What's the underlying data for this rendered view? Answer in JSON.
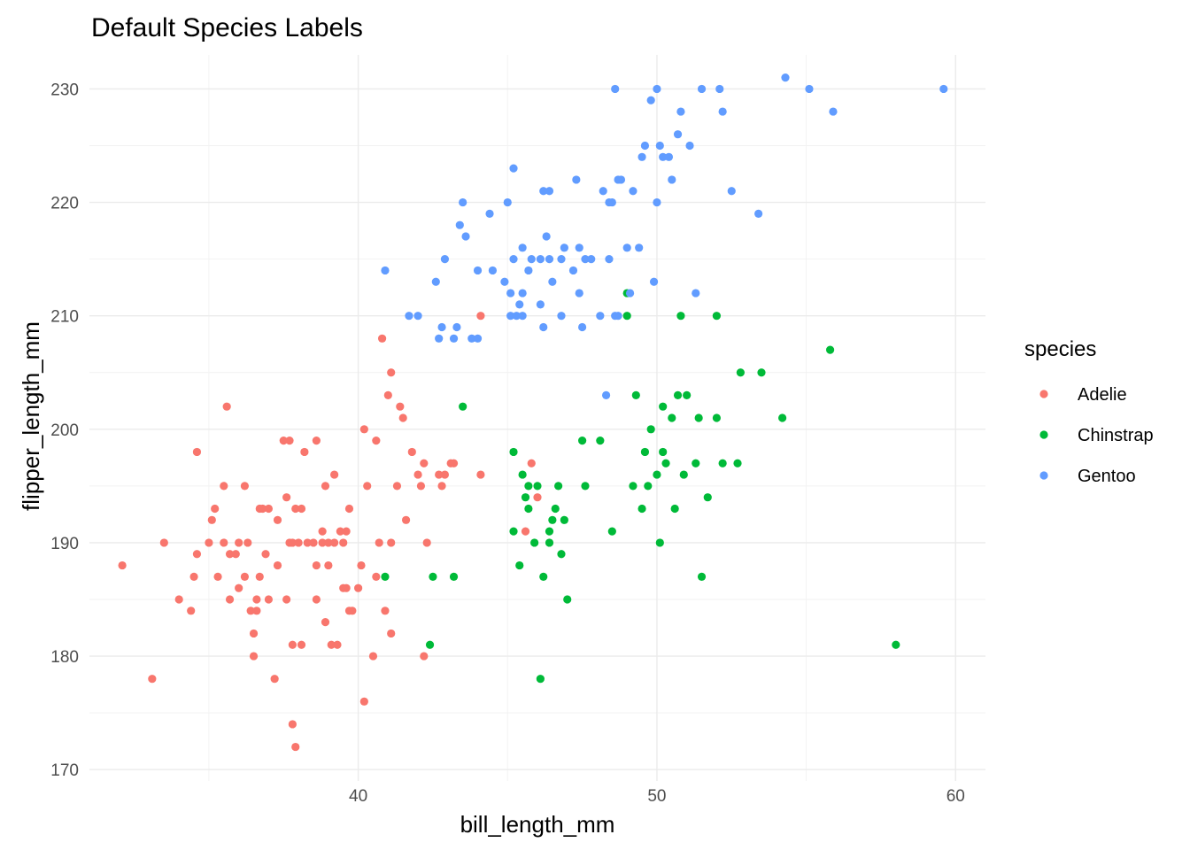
{
  "chart_data": {
    "type": "scatter",
    "title": "Default Species Labels",
    "xlabel": "bill_length_mm",
    "ylabel": "flipper_length_mm",
    "xlim": [
      31.0,
      61.0
    ],
    "ylim": [
      169.0,
      233.0
    ],
    "x_ticks": [
      40,
      50,
      60
    ],
    "y_ticks": [
      170,
      180,
      190,
      200,
      210,
      220,
      230
    ],
    "grid": true,
    "legend_title": "species",
    "legend_position": "right",
    "series": [
      {
        "name": "Adelie",
        "color": "#F8766D",
        "points": [
          [
            32.1,
            188
          ],
          [
            33.1,
            178
          ],
          [
            33.5,
            190
          ],
          [
            34.0,
            185
          ],
          [
            34.4,
            184
          ],
          [
            34.5,
            187
          ],
          [
            34.6,
            189
          ],
          [
            34.6,
            198
          ],
          [
            35.0,
            190
          ],
          [
            35.1,
            192
          ],
          [
            35.2,
            193
          ],
          [
            35.3,
            187
          ],
          [
            35.5,
            190
          ],
          [
            35.5,
            195
          ],
          [
            35.6,
            202
          ],
          [
            35.7,
            185
          ],
          [
            35.7,
            189
          ],
          [
            35.9,
            189
          ],
          [
            36.0,
            190
          ],
          [
            36.0,
            186
          ],
          [
            36.2,
            187
          ],
          [
            36.2,
            195
          ],
          [
            36.3,
            190
          ],
          [
            36.4,
            184
          ],
          [
            36.5,
            182
          ],
          [
            36.5,
            180
          ],
          [
            36.6,
            185
          ],
          [
            36.6,
            184
          ],
          [
            36.7,
            187
          ],
          [
            36.7,
            193
          ],
          [
            36.8,
            193
          ],
          [
            36.9,
            189
          ],
          [
            37.0,
            185
          ],
          [
            37.0,
            193
          ],
          [
            37.2,
            178
          ],
          [
            37.3,
            192
          ],
          [
            37.3,
            188
          ],
          [
            37.5,
            199
          ],
          [
            37.6,
            185
          ],
          [
            37.6,
            194
          ],
          [
            37.7,
            199
          ],
          [
            37.7,
            190
          ],
          [
            37.8,
            181
          ],
          [
            37.8,
            190
          ],
          [
            37.8,
            174
          ],
          [
            37.9,
            172
          ],
          [
            37.9,
            193
          ],
          [
            38.0,
            190
          ],
          [
            38.1,
            181
          ],
          [
            38.1,
            193
          ],
          [
            38.2,
            198
          ],
          [
            38.3,
            190
          ],
          [
            38.5,
            190
          ],
          [
            38.6,
            185
          ],
          [
            38.6,
            188
          ],
          [
            38.6,
            199
          ],
          [
            38.8,
            190
          ],
          [
            38.8,
            191
          ],
          [
            38.9,
            183
          ],
          [
            38.9,
            195
          ],
          [
            39.0,
            188
          ],
          [
            39.0,
            190
          ],
          [
            39.1,
            181
          ],
          [
            39.2,
            196
          ],
          [
            39.2,
            190
          ],
          [
            39.3,
            181
          ],
          [
            39.4,
            191
          ],
          [
            39.5,
            190
          ],
          [
            39.5,
            186
          ],
          [
            39.6,
            191
          ],
          [
            39.6,
            186
          ],
          [
            39.7,
            193
          ],
          [
            39.7,
            184
          ],
          [
            39.8,
            184
          ],
          [
            40.0,
            186
          ],
          [
            40.1,
            188
          ],
          [
            40.2,
            176
          ],
          [
            40.2,
            200
          ],
          [
            40.3,
            195
          ],
          [
            40.5,
            180
          ],
          [
            40.6,
            187
          ],
          [
            40.6,
            199
          ],
          [
            40.7,
            190
          ],
          [
            40.8,
            208
          ],
          [
            40.9,
            184
          ],
          [
            41.0,
            203
          ],
          [
            41.1,
            190
          ],
          [
            41.1,
            182
          ],
          [
            41.1,
            205
          ],
          [
            41.3,
            195
          ],
          [
            41.4,
            202
          ],
          [
            41.5,
            201
          ],
          [
            41.6,
            192
          ],
          [
            41.8,
            198
          ],
          [
            42.0,
            196
          ],
          [
            42.1,
            195
          ],
          [
            42.2,
            197
          ],
          [
            42.2,
            180
          ],
          [
            42.3,
            190
          ],
          [
            42.7,
            196
          ],
          [
            42.8,
            195
          ],
          [
            42.9,
            196
          ],
          [
            43.1,
            197
          ],
          [
            43.2,
            197
          ],
          [
            44.1,
            196
          ],
          [
            44.1,
            210
          ],
          [
            45.6,
            191
          ],
          [
            45.8,
            197
          ],
          [
            46.0,
            194
          ]
        ]
      },
      {
        "name": "Chinstrap",
        "color": "#00BA38",
        "points": [
          [
            40.9,
            187
          ],
          [
            42.4,
            181
          ],
          [
            42.5,
            187
          ],
          [
            43.2,
            187
          ],
          [
            43.5,
            202
          ],
          [
            45.2,
            198
          ],
          [
            45.2,
            191
          ],
          [
            45.4,
            188
          ],
          [
            45.5,
            196
          ],
          [
            45.6,
            194
          ],
          [
            45.7,
            195
          ],
          [
            45.7,
            193
          ],
          [
            45.9,
            190
          ],
          [
            46.0,
            195
          ],
          [
            46.1,
            178
          ],
          [
            46.2,
            187
          ],
          [
            46.4,
            191
          ],
          [
            46.4,
            190
          ],
          [
            46.5,
            192
          ],
          [
            46.6,
            193
          ],
          [
            46.7,
            195
          ],
          [
            46.8,
            189
          ],
          [
            46.9,
            192
          ],
          [
            47.0,
            185
          ],
          [
            47.5,
            199
          ],
          [
            47.6,
            195
          ],
          [
            48.1,
            199
          ],
          [
            48.5,
            191
          ],
          [
            49.0,
            210
          ],
          [
            49.0,
            212
          ],
          [
            49.2,
            195
          ],
          [
            49.3,
            203
          ],
          [
            49.5,
            193
          ],
          [
            49.6,
            198
          ],
          [
            49.7,
            195
          ],
          [
            49.8,
            200
          ],
          [
            50.0,
            196
          ],
          [
            50.1,
            190
          ],
          [
            50.2,
            198
          ],
          [
            50.2,
            202
          ],
          [
            50.3,
            197
          ],
          [
            50.5,
            201
          ],
          [
            50.6,
            193
          ],
          [
            50.7,
            203
          ],
          [
            50.8,
            210
          ],
          [
            50.9,
            196
          ],
          [
            51.0,
            203
          ],
          [
            51.3,
            197
          ],
          [
            51.4,
            201
          ],
          [
            51.5,
            187
          ],
          [
            51.7,
            194
          ],
          [
            52.0,
            201
          ],
          [
            52.0,
            210
          ],
          [
            52.2,
            197
          ],
          [
            52.7,
            197
          ],
          [
            52.8,
            205
          ],
          [
            53.5,
            205
          ],
          [
            54.2,
            201
          ],
          [
            55.8,
            207
          ],
          [
            58.0,
            181
          ]
        ]
      },
      {
        "name": "Gentoo",
        "color": "#619CFF",
        "points": [
          [
            40.9,
            214
          ],
          [
            41.7,
            210
          ],
          [
            42.0,
            210
          ],
          [
            42.6,
            213
          ],
          [
            42.7,
            208
          ],
          [
            42.8,
            209
          ],
          [
            42.9,
            215
          ],
          [
            43.2,
            208
          ],
          [
            43.3,
            209
          ],
          [
            43.4,
            218
          ],
          [
            43.5,
            220
          ],
          [
            43.6,
            217
          ],
          [
            43.8,
            208
          ],
          [
            44.0,
            208
          ],
          [
            44.4,
            219
          ],
          [
            44.5,
            214
          ],
          [
            44.9,
            213
          ],
          [
            45.0,
            220
          ],
          [
            45.1,
            210
          ],
          [
            45.1,
            212
          ],
          [
            45.2,
            215
          ],
          [
            45.2,
            223
          ],
          [
            45.3,
            210
          ],
          [
            45.4,
            211
          ],
          [
            45.5,
            210
          ],
          [
            45.5,
            212
          ],
          [
            45.5,
            216
          ],
          [
            45.7,
            214
          ],
          [
            45.8,
            215
          ],
          [
            46.1,
            215
          ],
          [
            46.2,
            209
          ],
          [
            46.2,
            221
          ],
          [
            46.3,
            217
          ],
          [
            46.4,
            215
          ],
          [
            46.4,
            221
          ],
          [
            46.5,
            213
          ],
          [
            46.8,
            210
          ],
          [
            46.8,
            215
          ],
          [
            46.9,
            216
          ],
          [
            47.2,
            214
          ],
          [
            47.3,
            222
          ],
          [
            47.4,
            212
          ],
          [
            47.5,
            209
          ],
          [
            47.6,
            215
          ],
          [
            47.8,
            215
          ],
          [
            48.1,
            210
          ],
          [
            48.2,
            221
          ],
          [
            48.4,
            215
          ],
          [
            48.4,
            220
          ],
          [
            48.5,
            220
          ],
          [
            48.6,
            230
          ],
          [
            48.7,
            210
          ],
          [
            48.7,
            222
          ],
          [
            48.8,
            222
          ],
          [
            49.0,
            216
          ],
          [
            49.1,
            212
          ],
          [
            49.2,
            221
          ],
          [
            49.4,
            216
          ],
          [
            49.5,
            224
          ],
          [
            49.6,
            225
          ],
          [
            49.8,
            229
          ],
          [
            49.9,
            213
          ],
          [
            50.0,
            220
          ],
          [
            50.0,
            230
          ],
          [
            50.1,
            225
          ],
          [
            50.2,
            224
          ],
          [
            50.4,
            224
          ],
          [
            50.5,
            222
          ],
          [
            50.7,
            226
          ],
          [
            50.8,
            228
          ],
          [
            51.1,
            225
          ],
          [
            51.3,
            212
          ],
          [
            51.5,
            230
          ],
          [
            52.1,
            230
          ],
          [
            52.2,
            228
          ],
          [
            52.5,
            221
          ],
          [
            53.4,
            219
          ],
          [
            54.3,
            231
          ],
          [
            55.1,
            230
          ],
          [
            55.9,
            228
          ],
          [
            59.6,
            230
          ],
          [
            48.3,
            203
          ],
          [
            48.6,
            210
          ],
          [
            47.4,
            216
          ],
          [
            46.1,
            211
          ],
          [
            44.0,
            214
          ]
        ]
      }
    ]
  }
}
